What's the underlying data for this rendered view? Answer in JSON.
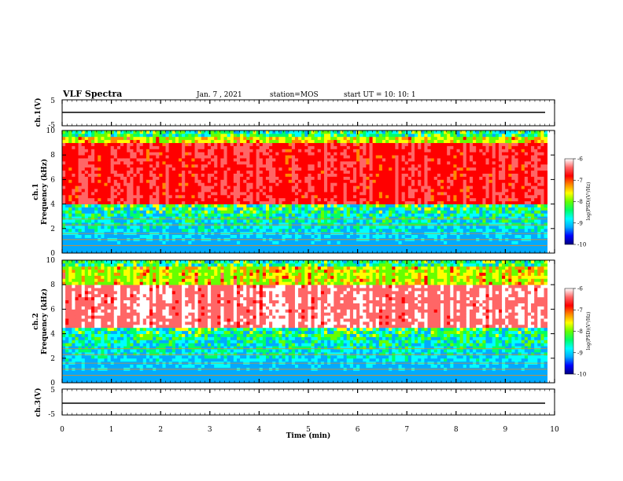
{
  "header": {
    "title": "VLF Spectra",
    "date": "Jan. 7 , 2021",
    "station": "station=MOS",
    "start": "start UT = 10: 10: 1"
  },
  "chart_data": [
    {
      "type": "line",
      "panel": "ch1_voltage",
      "ylabel": "ch.1(V)",
      "ylim": [
        -5,
        5
      ],
      "yticks": [
        "5",
        "-5"
      ],
      "series": [
        {
          "x": [
            0,
            9.85
          ],
          "values": [
            0,
            0
          ]
        }
      ]
    },
    {
      "type": "heatmap",
      "panel": "ch1_spectrogram",
      "ylabel": "ch.1\nFrequency (kHz)",
      "ylabel_lines": [
        "ch.1",
        "Frequency (kHz)"
      ],
      "ylim": [
        0,
        10
      ],
      "yticks": [
        "0",
        "2",
        "4",
        "6",
        "8",
        "10"
      ],
      "x_range": [
        0,
        9.85
      ],
      "colorbar": {
        "label": "log(PSD)(V²/Hz)",
        "range": [
          -10,
          -6
        ],
        "ticks": [
          "-6",
          "-7",
          "-8",
          "-9",
          "-10"
        ]
      },
      "intense_band_khz": [
        4,
        9
      ]
    },
    {
      "type": "heatmap",
      "panel": "ch2_spectrogram",
      "ylabel": "ch.2\nFrequency (kHz)",
      "ylabel_lines": [
        "ch.2",
        "Frequency (kHz)"
      ],
      "ylim": [
        0,
        10
      ],
      "yticks": [
        "0",
        "2",
        "4",
        "6",
        "8",
        "10"
      ],
      "x_range": [
        0,
        9.85
      ],
      "colorbar": {
        "label": "log(PSD)(V²/Hz)",
        "range": [
          -10,
          -6
        ],
        "ticks": [
          "-6",
          "-7",
          "-8",
          "-9",
          "-10"
        ]
      },
      "intense_band_khz": [
        4.5,
        8
      ]
    },
    {
      "type": "line",
      "panel": "ch3_voltage",
      "ylabel": "ch.3(V)",
      "ylim": [
        -5,
        5
      ],
      "yticks": [
        "5",
        "-5"
      ],
      "series": [
        {
          "x": [
            0,
            9.85
          ],
          "values": [
            0,
            0
          ]
        }
      ]
    }
  ],
  "xaxis": {
    "label": "Time (min)",
    "range": [
      0,
      10
    ],
    "ticks": [
      "0",
      "1",
      "2",
      "3",
      "4",
      "5",
      "6",
      "7",
      "8",
      "9",
      "10"
    ]
  },
  "colors": {
    "colormap": [
      "#00007f",
      "#0000ff",
      "#00aaff",
      "#00ffff",
      "#00ff66",
      "#66ff00",
      "#ffff00",
      "#ff8800",
      "#ff0000",
      "#ff6666",
      "#ffffff"
    ]
  }
}
